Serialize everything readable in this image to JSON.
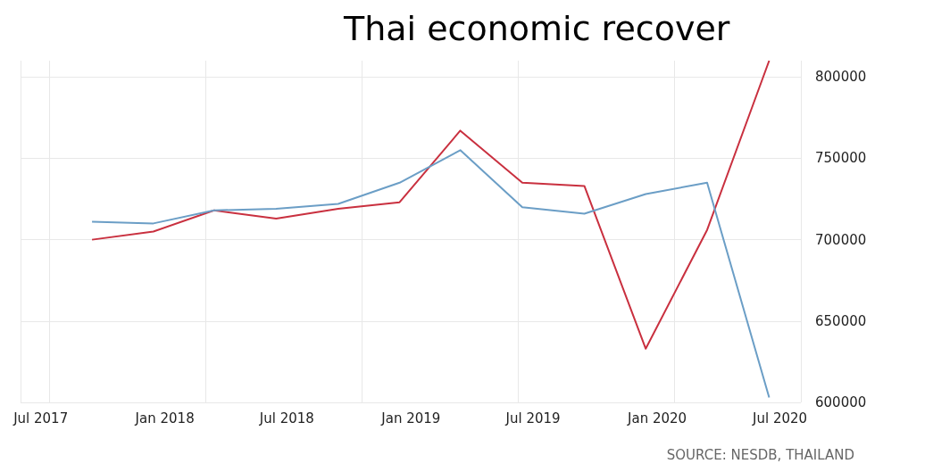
{
  "chart_data": {
    "type": "line",
    "title": "Thai economic recover",
    "x": [
      "2017-09-15",
      "2017-12-15",
      "2018-03-15",
      "2018-06-15",
      "2018-09-15",
      "2018-12-15",
      "2019-03-15",
      "2019-06-15",
      "2019-09-15",
      "2019-12-15",
      "2020-03-15",
      "2020-06-15"
    ],
    "series": [
      {
        "color": "#c9303f",
        "values": [
          700000,
          705000,
          718000,
          713000,
          719000,
          723000,
          767000,
          735000,
          733000,
          633000,
          706000,
          810000
        ]
      },
      {
        "color": "#6b9ec6",
        "values": [
          711000,
          710000,
          718000,
          719000,
          722000,
          735000,
          755000,
          720000,
          716000,
          728000,
          735000,
          603000
        ]
      }
    ],
    "xlim": [
      "2017-06-01",
      "2020-08-01"
    ],
    "xticks": [
      {
        "value": "2017-07-01",
        "label": "Jul 2017"
      },
      {
        "value": "2018-01-01",
        "label": "Jan 2018"
      },
      {
        "value": "2018-07-01",
        "label": "Jul 2018"
      },
      {
        "value": "2019-01-01",
        "label": "Jan 2019"
      },
      {
        "value": "2019-07-01",
        "label": "Jul 2019"
      },
      {
        "value": "2020-01-01",
        "label": "Jan 2020"
      },
      {
        "value": "2020-07-01",
        "label": "Jul 2020"
      }
    ],
    "ylim": [
      600000,
      810000
    ],
    "yticks": [
      600000,
      650000,
      700000,
      750000,
      800000
    ],
    "grid": true,
    "marker": "none",
    "line_style": "solid",
    "annotations": [
      "SOURCE: NESDB, THAILAND"
    ]
  }
}
